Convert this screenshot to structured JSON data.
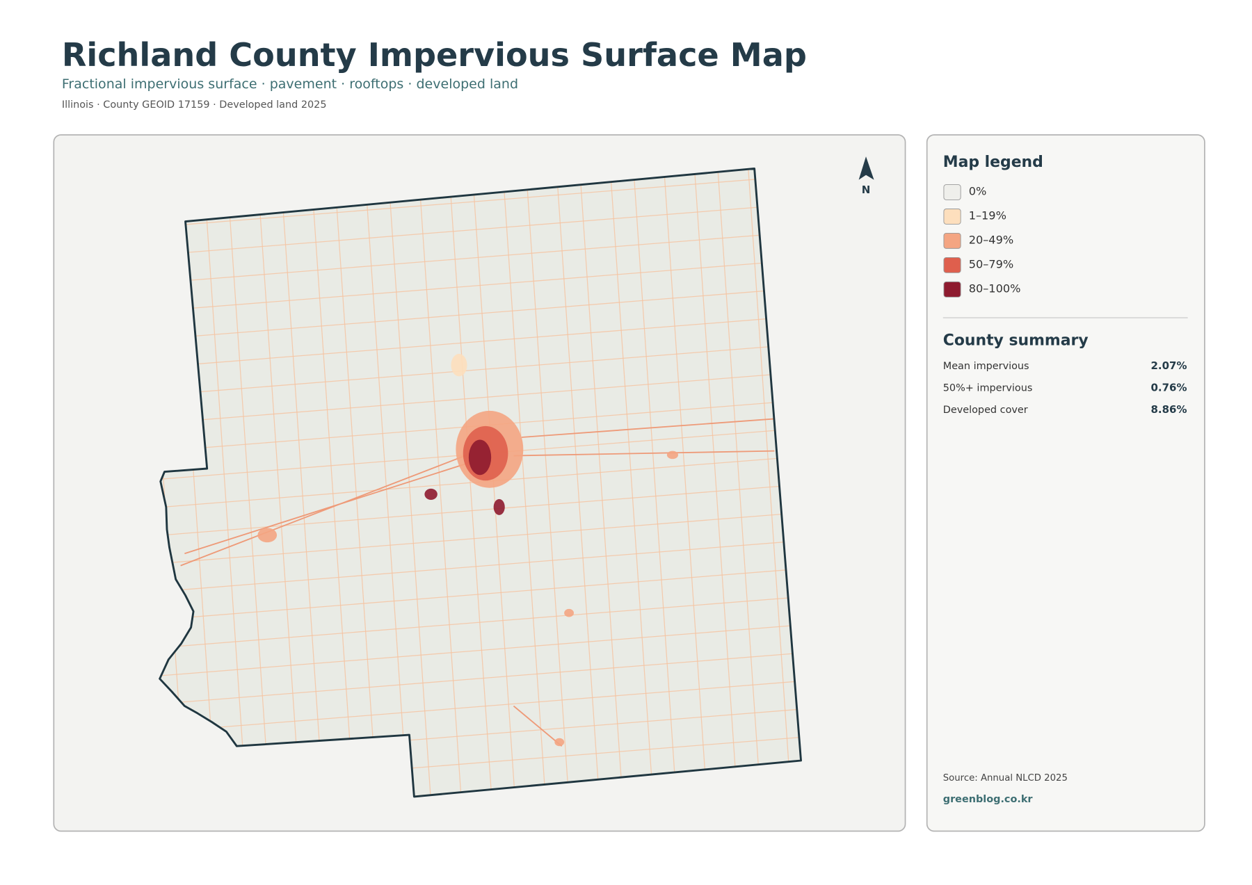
{
  "header": {
    "title": "Richland County Impervious Surface Map",
    "subtitle": "Fractional impervious surface · pavement · rooftops · developed land",
    "meta": "Illinois · County GEOID 17159 · Developed land 2025"
  },
  "map": {
    "north_label": "N"
  },
  "legend": {
    "title": "Map legend",
    "items": [
      {
        "label": "0%",
        "color": "#efefeb"
      },
      {
        "label": "1–19%",
        "color": "#fddfbd"
      },
      {
        "label": "20–49%",
        "color": "#f4a582"
      },
      {
        "label": "50–79%",
        "color": "#df5f4d"
      },
      {
        "label": "80–100%",
        "color": "#8e1b2f"
      }
    ]
  },
  "summary": {
    "title": "County summary",
    "rows": [
      {
        "label": "Mean impervious",
        "value": "2.07%"
      },
      {
        "label": "50%+ impervious",
        "value": "0.76%"
      },
      {
        "label": "Developed cover",
        "value": "8.86%"
      }
    ]
  },
  "footer": {
    "source": "Source: Annual NLCD 2025",
    "site": "greenblog.co.kr"
  }
}
